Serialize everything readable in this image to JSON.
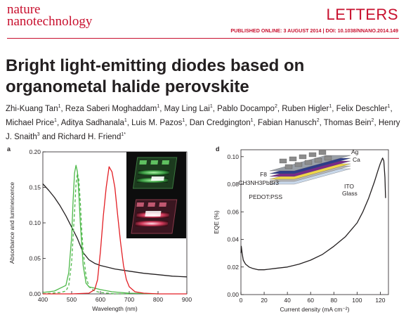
{
  "header": {
    "journal_line1": "nature",
    "journal_line2": "nanotechnology",
    "section": "LETTERS",
    "pub_info": "PUBLISHED ONLINE: 3 AUGUST 2014 | DOI: 10.1038/NNANO.2014.149"
  },
  "title": "Bright light-emitting diodes based on organometal halide perovskite",
  "authors": [
    {
      "name": "Zhi-Kuang Tan",
      "aff": "1"
    },
    {
      "name": "Reza Saberi Moghaddam",
      "aff": "1"
    },
    {
      "name": "May Ling Lai",
      "aff": "1"
    },
    {
      "name": "Pablo Docampo",
      "aff": "2"
    },
    {
      "name": "Ruben Higler",
      "aff": "1"
    },
    {
      "name": "Felix Deschler",
      "aff": "1"
    },
    {
      "name": "Michael Price",
      "aff": "1"
    },
    {
      "name": "Aditya Sadhanala",
      "aff": "1"
    },
    {
      "name": "Luis M. Pazos",
      "aff": "1"
    },
    {
      "name": "Dan Credgington",
      "aff": "1"
    },
    {
      "name": "Fabian Hanusch",
      "aff": "2"
    },
    {
      "name": "Thomas Bein",
      "aff": "2"
    },
    {
      "name": "Henry J. Snaith",
      "aff": "3"
    },
    {
      "name": "Richard H. Friend",
      "aff": "1*"
    }
  ],
  "author_join": " and ",
  "colors": {
    "brand": "#c8102e",
    "green": "#4cb848",
    "red": "#e31e24",
    "black": "#231f20"
  },
  "chart_data": [
    {
      "panel": "a",
      "type": "line",
      "xlabel": "Wavelength (nm)",
      "ylabel": "Absorbance and luminescence",
      "xlim": [
        400,
        900
      ],
      "ylim": [
        0,
        0.2
      ],
      "xticks": [
        "400",
        "500",
        "600",
        "700",
        "800",
        "900"
      ],
      "yticks": [
        "0.00",
        "0.05",
        "0.10",
        "0.15",
        "0.20"
      ],
      "grid": false,
      "series": [
        {
          "key": "absorbance",
          "color": "#231f20",
          "dashed": false,
          "x": [
            400,
            420,
            440,
            460,
            480,
            500,
            520,
            540,
            560,
            580,
            600,
            650,
            700,
            750,
            800,
            850,
            900
          ],
          "y": [
            0.155,
            0.146,
            0.136,
            0.124,
            0.11,
            0.094,
            0.078,
            0.058,
            0.048,
            0.043,
            0.04,
            0.035,
            0.032,
            0.029,
            0.027,
            0.025,
            0.024
          ]
        },
        {
          "key": "green-el",
          "color": "#4cb848",
          "dashed": false,
          "x": [
            400,
            440,
            460,
            480,
            490,
            500,
            505,
            510,
            515,
            520,
            525,
            530,
            540,
            550,
            560,
            580,
            600,
            640,
            700,
            800
          ],
          "y": [
            0.002,
            0.004,
            0.008,
            0.012,
            0.03,
            0.08,
            0.13,
            0.17,
            0.181,
            0.172,
            0.14,
            0.1,
            0.04,
            0.015,
            0.01,
            0.008,
            0.006,
            0.003,
            0.001,
            0.0
          ]
        },
        {
          "key": "green-pl",
          "color": "#4cb848",
          "dashed": true,
          "x": [
            400,
            460,
            480,
            490,
            500,
            510,
            515,
            520,
            525,
            530,
            535,
            540,
            550,
            560,
            580,
            600,
            650,
            700
          ],
          "y": [
            0.0,
            0.002,
            0.004,
            0.012,
            0.045,
            0.115,
            0.155,
            0.17,
            0.16,
            0.13,
            0.09,
            0.06,
            0.025,
            0.01,
            0.004,
            0.002,
            0.0,
            0.0
          ]
        },
        {
          "key": "red-el",
          "color": "#e31e24",
          "dashed": false,
          "x": [
            400,
            500,
            560,
            580,
            590,
            600,
            610,
            620,
            630,
            640,
            650,
            660,
            670,
            680,
            690,
            700,
            720,
            750,
            800,
            900
          ],
          "y": [
            0.0,
            0.0,
            0.001,
            0.006,
            0.02,
            0.06,
            0.11,
            0.15,
            0.179,
            0.172,
            0.15,
            0.11,
            0.072,
            0.04,
            0.02,
            0.01,
            0.003,
            0.001,
            0.0,
            0.0
          ]
        }
      ]
    },
    {
      "panel": "d",
      "type": "line",
      "xlabel": "Current density (mA cm⁻²)",
      "ylabel": "EQE (%)",
      "xlim": [
        0,
        127
      ],
      "ylim": [
        0,
        0.105
      ],
      "xticks": [
        "0",
        "20",
        "40",
        "60",
        "80",
        "100",
        "120"
      ],
      "yticks": [
        "0.00",
        "0.02",
        "0.04",
        "0.06",
        "0.08",
        "0.10"
      ],
      "grid": false,
      "series": [
        {
          "key": "eqe",
          "color": "#231f20",
          "dashed": false,
          "x": [
            0,
            0.3,
            1,
            2,
            4,
            7,
            10,
            15,
            20,
            30,
            40,
            50,
            60,
            70,
            80,
            90,
            100,
            105,
            110,
            115,
            118,
            120,
            122,
            123,
            124,
            124.5
          ],
          "y": [
            0.03,
            0.035,
            0.03,
            0.025,
            0.022,
            0.02,
            0.019,
            0.018,
            0.018,
            0.019,
            0.02,
            0.022,
            0.025,
            0.029,
            0.035,
            0.042,
            0.052,
            0.06,
            0.07,
            0.082,
            0.09,
            0.095,
            0.099,
            0.097,
            0.085,
            0.07
          ]
        }
      ],
      "inset_layers": [
        "Ag",
        "Ca",
        "F8",
        "CH3NH3PbBr3",
        "ITO",
        "PEDOT:PSS",
        "Glass"
      ]
    }
  ]
}
